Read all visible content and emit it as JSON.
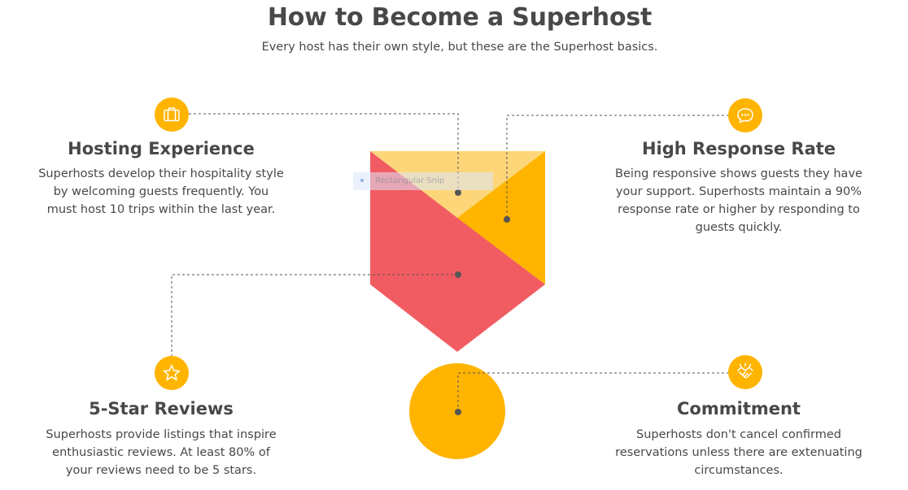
{
  "header": {
    "title": "How to Become a Superhost",
    "subtitle": "Every host has their own style, but these are the Superhost basics."
  },
  "sections": {
    "hosting_experience": {
      "title": "Hosting Experience",
      "lines": [
        "Superhosts develop their hospitality style",
        "by welcoming guests frequently. You",
        "must host 10 trips within the last year."
      ],
      "icon": "suitcase-icon"
    },
    "high_response_rate": {
      "title": "High Response Rate",
      "lines": [
        "Being responsive shows guests they have",
        "your support. Superhosts maintain a 90%",
        "response rate or higher by responding to",
        "guests quickly."
      ],
      "icon": "chat-bubble-icon"
    },
    "five_star_reviews": {
      "title": "5-Star Reviews",
      "lines": [
        "Superhosts provide listings that inspire",
        "enthusiastic reviews. At least 80% of",
        "your reviews need to be 5 stars."
      ],
      "icon": "star-icon"
    },
    "commitment": {
      "title": "Commitment",
      "lines": [
        "Superhosts don't cancel confirmed",
        "reservations unless there are extenuating",
        "circumstances."
      ],
      "icon": "handshake-icon"
    }
  },
  "overlay": {
    "snip_label": "Rectangular Snip"
  },
  "colors": {
    "accent_yellow": "#FFB400",
    "light_yellow": "#FDD67A",
    "coral": "#F15C62",
    "text": "#484848",
    "connector": "#555555"
  }
}
